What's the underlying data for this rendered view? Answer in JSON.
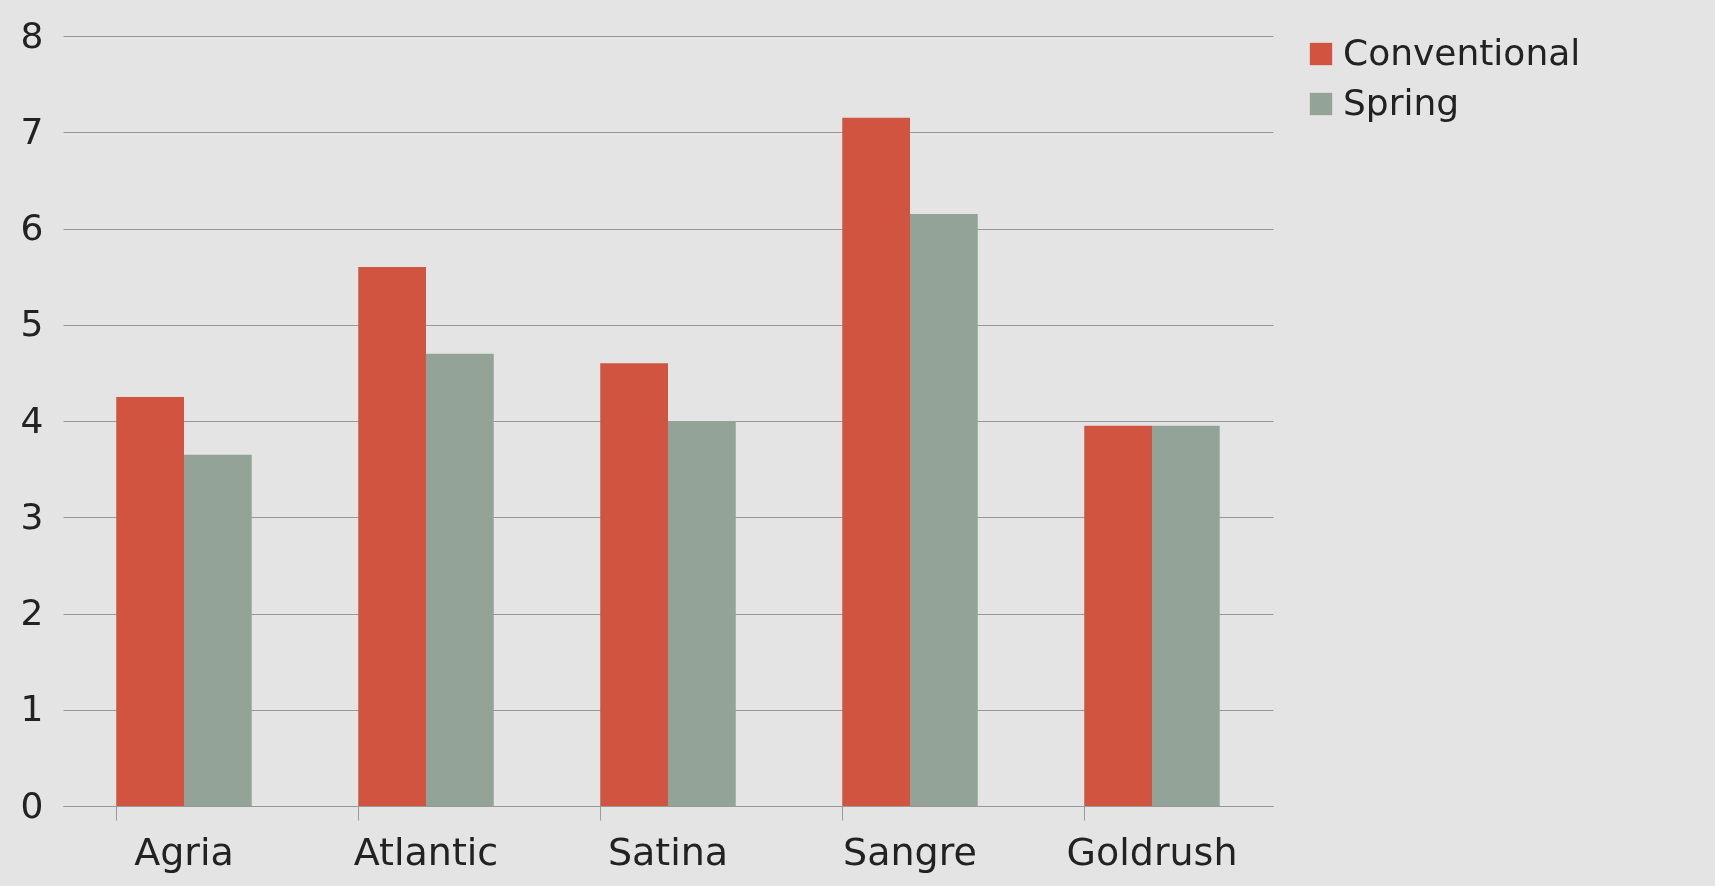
{
  "chart_data": {
    "type": "bar",
    "categories": [
      "Agria",
      "Atlantic",
      "Satina",
      "Sangre",
      "Goldrush"
    ],
    "series": [
      {
        "name": "Conventional",
        "color": "#d0543f",
        "values": [
          4.25,
          5.6,
          4.6,
          7.15,
          3.95
        ]
      },
      {
        "name": "Spring",
        "color": "#94a398",
        "values": [
          3.65,
          4.7,
          4.0,
          6.15,
          3.95
        ]
      }
    ],
    "ylim": [
      0,
      8
    ],
    "yticks": [
      0,
      1,
      2,
      3,
      4,
      5,
      6,
      7,
      8
    ],
    "grid": "y",
    "legend": "right"
  }
}
